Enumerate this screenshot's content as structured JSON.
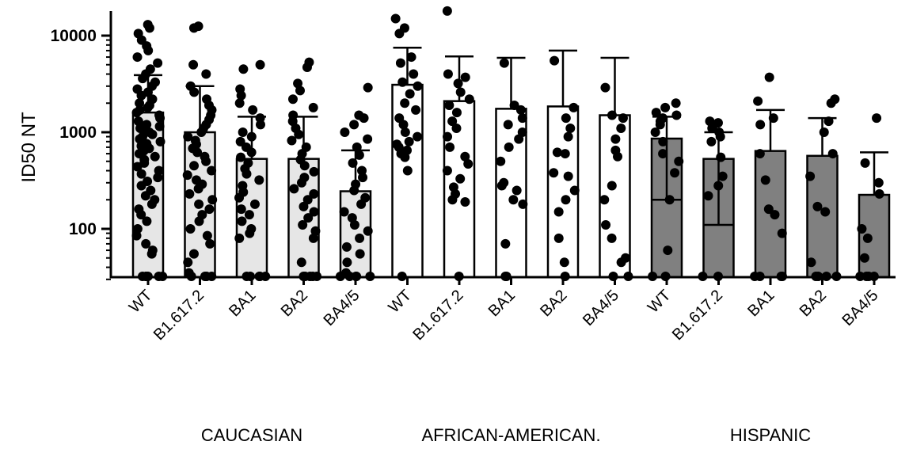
{
  "chart_data": {
    "type": "bar",
    "ylabel": "ID50 NT",
    "yscale": "log",
    "ylim": [
      30,
      18000
    ],
    "yticks": [
      100,
      1000,
      10000
    ],
    "ytick_labels": [
      "100",
      "1000",
      "10000"
    ],
    "grid": false,
    "legend": "none",
    "group_colors": {
      "CAUCASIAN": "#e6e6e6",
      "AFRICAN-AMERICAN.": "#ffffff",
      "HISPANIC": "#808080"
    },
    "groups": [
      {
        "label": "CAUCASIAN",
        "bars": [
          {
            "label": "WT",
            "mean": 1600,
            "err_upper": 3900,
            "points": [
              13000,
              12000,
              10500,
              9000,
              7800,
              7000,
              6000,
              5200,
              4500,
              4000,
              3600,
              3300,
              3000,
              2800,
              2600,
              2400,
              2200,
              2000,
              1900,
              1800,
              1700,
              1600,
              1500,
              1400,
              1300,
              1200,
              1150,
              1100,
              1050,
              1000,
              950,
              900,
              850,
              800,
              760,
              720,
              680,
              640,
              600,
              560,
              520,
              480,
              440,
              400,
              370,
              340,
              310,
              280,
              250,
              220,
              200,
              180,
              160,
              140,
              120,
              100,
              85,
              70,
              60,
              55,
              30,
              30,
              30,
              30,
              30,
              30,
              30
            ]
          },
          {
            "label": "B1.617.2",
            "mean": 1000,
            "err_upper": 3000,
            "points": [
              12500,
              12000,
              5000,
              4000,
              3000,
              2600,
              2200,
              1900,
              1700,
              1500,
              1350,
              1200,
              1100,
              1000,
              900,
              820,
              750,
              680,
              620,
              560,
              500,
              450,
              400,
              360,
              320,
              290,
              260,
              230,
              200,
              180,
              160,
              140,
              120,
              100,
              85,
              70,
              55,
              45,
              35,
              30,
              30,
              30,
              30,
              30
            ]
          },
          {
            "label": "BA1",
            "mean": 530,
            "err_upper": 1450,
            "points": [
              5000,
              4500,
              2800,
              2400,
              2000,
              1700,
              1400,
              1200,
              1000,
              900,
              800,
              700,
              620,
              550,
              480,
              420,
              370,
              320,
              280,
              240,
              210,
              180,
              160,
              140,
              120,
              100,
              90,
              80,
              30,
              30,
              30,
              30,
              30
            ]
          },
          {
            "label": "BA2",
            "mean": 530,
            "err_upper": 1450,
            "points": [
              5300,
              4700,
              3200,
              2700,
              2200,
              1800,
              1500,
              1300,
              1100,
              950,
              820,
              700,
              600,
              520,
              450,
              390,
              340,
              300,
              260,
              230,
              200,
              170,
              150,
              130,
              110,
              95,
              80,
              45,
              30,
              30,
              30,
              30,
              30
            ]
          },
          {
            "label": "BA4/5",
            "mean": 245,
            "err_upper": 650,
            "points": [
              2900,
              1500,
              1400,
              1200,
              1000,
              850,
              700,
              580,
              480,
              400,
              340,
              290,
              250,
              210,
              180,
              150,
              130,
              110,
              95,
              80,
              65,
              55,
              45,
              35,
              30,
              30,
              30,
              30,
              30
            ]
          }
        ]
      },
      {
        "label": "AFRICAN-AMERICAN.",
        "bars": [
          {
            "label": "WT",
            "mean": 3100,
            "err_upper": 7500,
            "points": [
              15000,
              12000,
              10500,
              6000,
              5200,
              4000,
              3300,
              3000,
              2500,
              2000,
              1700,
              1400,
              1200,
              1000,
              900,
              800,
              750,
              700,
              650,
              600,
              550,
              400,
              30
            ]
          },
          {
            "label": "B1.617.2",
            "mean": 2100,
            "err_upper": 6100,
            "points": [
              18000,
              4000,
              3700,
              3200,
              2600,
              2200,
              1900,
              1600,
              1300,
              1100,
              900,
              700,
              560,
              470,
              400,
              330,
              270,
              230,
              200,
              190,
              30
            ]
          },
          {
            "label": "BA1",
            "mean": 1750,
            "err_upper": 5900,
            "points": [
              5200,
              1900,
              1700,
              1400,
              1200,
              1000,
              850,
              700,
              500,
              300,
              280,
              250,
              200,
              180,
              70,
              30,
              30
            ]
          },
          {
            "label": "BA2",
            "mean": 1850,
            "err_upper": 7000,
            "points": [
              5500,
              1800,
              1400,
              1100,
              900,
              620,
              600,
              380,
              350,
              250,
              200,
              150,
              80,
              45,
              30
            ]
          },
          {
            "label": "BA4/5",
            "mean": 1500,
            "err_upper": 5900,
            "points": [
              2900,
              1500,
              1400,
              1100,
              850,
              650,
              560,
              280,
              200,
              110,
              80,
              50,
              45,
              30,
              30
            ]
          }
        ]
      },
      {
        "label": "HISPANIC",
        "bars": [
          {
            "label": "WT",
            "mean": 860,
            "err_upper": 1450,
            "err_lower": 200,
            "points": [
              2000,
              1800,
              1600,
              1500,
              1400,
              1300,
              1200,
              1000,
              800,
              600,
              500,
              380,
              200,
              60,
              30,
              30
            ]
          },
          {
            "label": "B1.617.2",
            "mean": 530,
            "err_upper": 1000,
            "err_lower": 110,
            "points": [
              1300,
              1250,
              1200,
              1100,
              1000,
              900,
              800,
              550,
              350,
              280,
              220,
              30,
              30
            ]
          },
          {
            "label": "BA1",
            "mean": 640,
            "err_upper": 1700,
            "points": [
              3700,
              2100,
              1400,
              1200,
              600,
              320,
              160,
              140,
              90,
              30,
              30,
              30,
              30
            ]
          },
          {
            "label": "BA2",
            "mean": 570,
            "err_upper": 1400,
            "points": [
              2200,
              2000,
              1300,
              1000,
              600,
              350,
              170,
              150,
              45,
              30,
              30,
              30,
              30
            ]
          },
          {
            "label": "BA4/5",
            "mean": 225,
            "err_upper": 620,
            "points": [
              1400,
              480,
              300,
              230,
              100,
              80,
              50,
              30,
              30,
              30,
              30
            ]
          }
        ]
      }
    ]
  }
}
